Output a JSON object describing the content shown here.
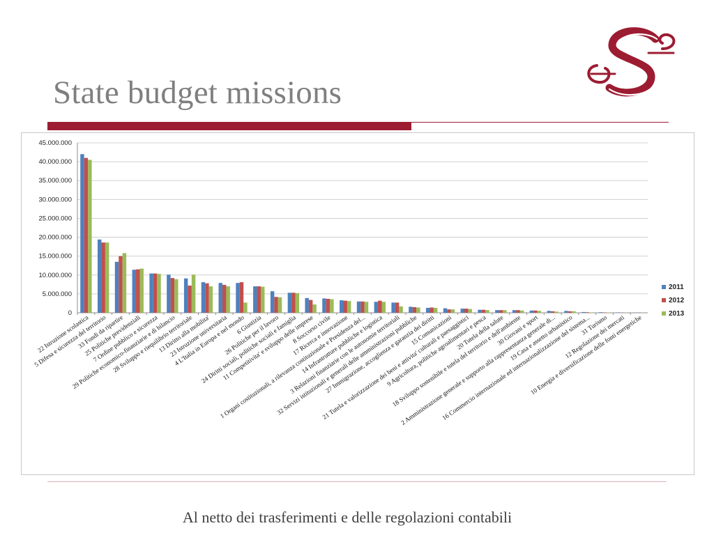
{
  "slide": {
    "title": "State budget missions",
    "footer": "Al netto dei trasferimenti e delle regolazioni contabili",
    "accent_color": "#9c1c32"
  },
  "chart_data": {
    "type": "bar",
    "ylim": [
      0,
      45000000
    ],
    "yticks": [
      "0",
      "5.000.000",
      "10.000.000",
      "15.000.000",
      "20.000.000",
      "25.000.000",
      "30.000.000",
      "35.000.000",
      "40.000.000",
      "45.000.000"
    ],
    "grid": true,
    "legend_position": "right",
    "categories": [
      "22 Istruzione scolastica",
      "5 Difesa e sicurezza del territorio",
      "33 Fondi da ripartire",
      "25 Politiche previdenziali",
      "7 Ordine pubblico e sicurezza",
      "29 Politiche economico-finanziarie e di bilancio",
      "28 Sviluppo e riequilibrio territoriale",
      "13 Diritto alla mobilita'",
      "23 Istruzione universitaria",
      "4 L'Italia in Europa e nel mondo",
      "6 Giustizia",
      "26 Politiche per il lavoro",
      "24 Diritti sociali, politiche sociali e famiglia",
      "11 Competitivita' e sviluppo delle imprese",
      "8 Soccorso civile",
      "17 Ricerca e innovazione",
      "1 Organi costituzionali, a rilevanza costituzionale e Presidenza del...",
      "14 Infrastrutture pubbliche e logistica",
      "3 Relazioni finanziarie con le autonomie territoriali",
      "32 Servizi istituzionali e generali delle amministrazioni pubbliche",
      "27 Immigrazione, accoglienza e garanzia dei diritti",
      "15 Comunicazioni",
      "21 Tutela e valorizzazione dei beni e attivita' culturali e paesaggistici",
      "9 Agricoltura, politiche agroalimentari e pesca",
      "20 Tutela della salute",
      "18 Sviluppo sostenibile e tutela del territorio e dell'ambiente",
      "30 Giovani e sport",
      "2 Amministrazione generale e supporto alla rappresentanza generale di...",
      "19 Casa e assetto urbanistico",
      "16 Commercio internazionale ed internazionalizzazione del sistema...",
      "31 Turismo",
      "12 Regolazione dei mercati",
      "10 Energia e diversificazione delle fonti energetiche"
    ],
    "series": [
      {
        "name": "2011",
        "color": "#4f81bd",
        "values": [
          42000000,
          19400000,
          13500000,
          11400000,
          10400000,
          10100000,
          9100000,
          8100000,
          7900000,
          7900000,
          7000000,
          5700000,
          5300000,
          3900000,
          3800000,
          3300000,
          3000000,
          2900000,
          2700000,
          1600000,
          1300000,
          1200000,
          1100000,
          800000,
          700000,
          700000,
          600000,
          500000,
          500000,
          200000,
          150000,
          100000,
          50000
        ]
      },
      {
        "name": "2012",
        "color": "#c0504d",
        "values": [
          41000000,
          18600000,
          15000000,
          11500000,
          10400000,
          9200000,
          7200000,
          7800000,
          7400000,
          8100000,
          7000000,
          4200000,
          5300000,
          3400000,
          3700000,
          3200000,
          3000000,
          3200000,
          2700000,
          1500000,
          1400000,
          900000,
          1100000,
          800000,
          700000,
          700000,
          600000,
          400000,
          400000,
          150000,
          100000,
          50000,
          50000
        ]
      },
      {
        "name": "2013",
        "color": "#9bbb59",
        "values": [
          40500000,
          18600000,
          15800000,
          11700000,
          10300000,
          8900000,
          10100000,
          7000000,
          7000000,
          2700000,
          6900000,
          4100000,
          5200000,
          2200000,
          3600000,
          3100000,
          2900000,
          2900000,
          1700000,
          1400000,
          1300000,
          900000,
          1000000,
          700000,
          700000,
          600000,
          500000,
          300000,
          400000,
          100000,
          100000,
          50000,
          50000
        ]
      }
    ]
  }
}
